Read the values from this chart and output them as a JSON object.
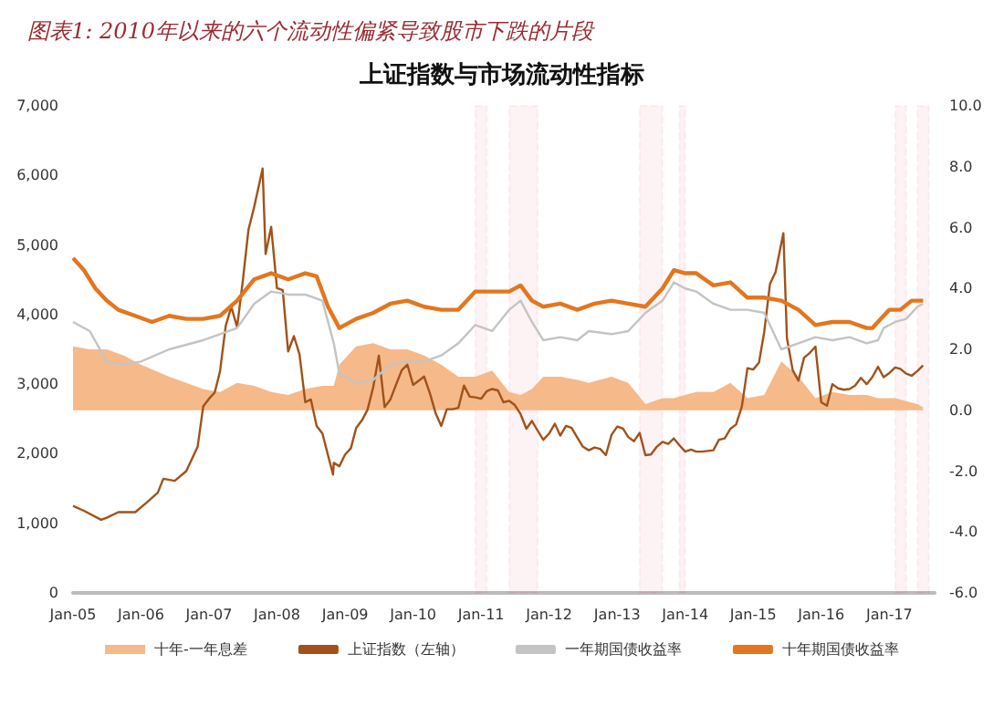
{
  "chart_data": {
    "type": "line",
    "title": "图表1: 2010年以来的六个流动性偏紧导致股市下跌的片段",
    "subtitle": "上证指数与市场流动性指标",
    "xlim": [
      "2005-01",
      "2017-09"
    ],
    "xticks": [
      {
        "value": "2005-01",
        "label": "Jan-05"
      },
      {
        "value": "2006-01",
        "label": "Jan-06"
      },
      {
        "value": "2007-01",
        "label": "Jan-07"
      },
      {
        "value": "2008-01",
        "label": "Jan-08"
      },
      {
        "value": "2009-01",
        "label": "Jan-09"
      },
      {
        "value": "2010-01",
        "label": "Jan-10"
      },
      {
        "value": "2011-01",
        "label": "Jan-11"
      },
      {
        "value": "2012-01",
        "label": "Jan-12"
      },
      {
        "value": "2013-01",
        "label": "Jan-13"
      },
      {
        "value": "2014-01",
        "label": "Jan-14"
      },
      {
        "value": "2015-01",
        "label": "Jan-15"
      },
      {
        "value": "2016-01",
        "label": "Jan-16"
      },
      {
        "value": "2017-01",
        "label": "Jan-17"
      }
    ],
    "ylim": [
      0,
      7000
    ],
    "yticks": [
      {
        "value": 0,
        "label": "0"
      },
      {
        "value": 1000,
        "label": "1,000"
      },
      {
        "value": 2000,
        "label": "2,000"
      },
      {
        "value": 3000,
        "label": "3,000"
      },
      {
        "value": 4000,
        "label": "4,000"
      },
      {
        "value": 5000,
        "label": "5,000"
      },
      {
        "value": 6000,
        "label": "6,000"
      },
      {
        "value": 7000,
        "label": "7,000"
      }
    ],
    "y2lim": [
      -6,
      10
    ],
    "y2ticks": [
      {
        "value": -6,
        "label": "-6.0"
      },
      {
        "value": -4,
        "label": "-4.0"
      },
      {
        "value": -2,
        "label": "-2.0"
      },
      {
        "value": 0,
        "label": "0.0"
      },
      {
        "value": 2,
        "label": "2.0"
      },
      {
        "value": 4,
        "label": "4.0"
      },
      {
        "value": 6,
        "label": "6.0"
      },
      {
        "value": 8,
        "label": "8.0"
      },
      {
        "value": 10,
        "label": "10.0"
      }
    ],
    "grid": false,
    "legend": "bottom",
    "marker": "none",
    "line_style": "solid",
    "bands": [
      {
        "axis": "x",
        "from": "2010-12",
        "to": "2011-02",
        "color": "#e8436a"
      },
      {
        "axis": "x",
        "from": "2011-06",
        "to": "2011-11",
        "color": "#e8436a"
      },
      {
        "axis": "x",
        "from": "2013-05",
        "to": "2013-09",
        "color": "#e8436a"
      },
      {
        "axis": "x",
        "from": "2013-12",
        "to": "2014-01",
        "color": "#e8436a"
      },
      {
        "axis": "x",
        "from": "2017-02",
        "to": "2017-04",
        "color": "#e8436a"
      },
      {
        "axis": "x",
        "from": "2017-06",
        "to": "2017-08",
        "color": "#e8436a"
      }
    ],
    "series": [
      {
        "name": "十年-一年息差",
        "type": "area",
        "axis": "y2",
        "color": "#f6b98a",
        "x": [
          "2005-01",
          "2005-04",
          "2005-07",
          "2005-10",
          "2006-01",
          "2006-06",
          "2006-12",
          "2007-03",
          "2007-06",
          "2007-09",
          "2007-12",
          "2008-03",
          "2008-06",
          "2008-09",
          "2008-11",
          "2008-12",
          "2009-03",
          "2009-06",
          "2009-09",
          "2009-12",
          "2010-03",
          "2010-06",
          "2010-09",
          "2010-12",
          "2011-03",
          "2011-06",
          "2011-08",
          "2011-10",
          "2011-12",
          "2012-03",
          "2012-06",
          "2012-08",
          "2012-12",
          "2013-03",
          "2013-06",
          "2013-09",
          "2013-11",
          "2014-01",
          "2014-03",
          "2014-06",
          "2014-09",
          "2014-12",
          "2015-03",
          "2015-06",
          "2015-09",
          "2015-12",
          "2016-03",
          "2016-06",
          "2016-09",
          "2016-11",
          "2016-12",
          "2017-02",
          "2017-04",
          "2017-06",
          "2017-07"
        ],
        "values": [
          2.1,
          2.0,
          2.0,
          1.8,
          1.5,
          1.1,
          0.7,
          0.6,
          0.9,
          0.8,
          0.6,
          0.5,
          0.7,
          0.8,
          0.8,
          1.5,
          2.1,
          2.2,
          2.0,
          2.0,
          1.8,
          1.5,
          1.1,
          1.1,
          1.3,
          0.6,
          0.5,
          0.7,
          1.1,
          1.1,
          1.0,
          0.9,
          1.1,
          0.9,
          0.2,
          0.4,
          0.4,
          0.5,
          0.6,
          0.6,
          0.9,
          0.4,
          0.5,
          1.6,
          1.1,
          0.4,
          0.6,
          0.5,
          0.5,
          0.4,
          0.4,
          0.4,
          0.3,
          0.2,
          0.1
        ]
      },
      {
        "name": "上证指数（左轴）",
        "color": "#a0521a",
        "x": [
          "2005-01",
          "2005-03",
          "2005-06",
          "2005-07",
          "2005-09",
          "2005-12",
          "2006-02",
          "2006-04",
          "2006-05",
          "2006-07",
          "2006-09",
          "2006-11",
          "2006-12",
          "2007-01",
          "2007-02",
          "2007-03",
          "2007-04",
          "2007-05",
          "2007-06",
          "2007-07",
          "2007-08",
          "2007-09",
          "2007-10-16",
          "2007-11",
          "2007-12",
          "2008-01",
          "2008-02",
          "2008-03",
          "2008-04",
          "2008-05",
          "2008-06",
          "2008-07",
          "2008-08",
          "2008-09",
          "2008-10-28",
          "2008-11",
          "2008-12",
          "2009-01",
          "2009-02",
          "2009-03",
          "2009-04",
          "2009-05",
          "2009-06",
          "2009-07",
          "2009-08",
          "2009-09",
          "2009-10",
          "2009-11",
          "2009-12",
          "2010-01",
          "2010-02",
          "2010-03",
          "2010-04",
          "2010-05",
          "2010-06",
          "2010-07",
          "2010-08",
          "2010-09",
          "2010-10",
          "2010-11",
          "2010-12",
          "2011-01",
          "2011-02",
          "2011-03",
          "2011-04",
          "2011-05",
          "2011-06",
          "2011-07",
          "2011-08",
          "2011-09",
          "2011-10",
          "2011-11",
          "2011-12",
          "2012-01",
          "2012-02",
          "2012-03",
          "2012-04",
          "2012-05",
          "2012-06",
          "2012-07",
          "2012-08",
          "2012-09",
          "2012-10",
          "2012-11",
          "2012-12",
          "2013-01",
          "2013-02",
          "2013-03",
          "2013-04",
          "2013-05",
          "2013-06",
          "2013-07",
          "2013-08",
          "2013-09",
          "2013-10",
          "2013-11",
          "2013-12",
          "2014-01",
          "2014-02",
          "2014-03",
          "2014-04",
          "2014-05",
          "2014-06",
          "2014-07",
          "2014-08",
          "2014-09",
          "2014-10",
          "2014-11",
          "2014-12",
          "2015-01",
          "2015-02",
          "2015-03",
          "2015-04",
          "2015-05",
          "2015-06-12",
          "2015-07",
          "2015-08",
          "2015-09",
          "2015-10",
          "2015-11",
          "2015-12",
          "2016-01",
          "2016-02",
          "2016-03",
          "2016-04",
          "2016-05",
          "2016-06",
          "2016-07",
          "2016-08",
          "2016-09",
          "2016-10",
          "2016-11",
          "2016-12",
          "2017-01",
          "2017-02",
          "2017-03",
          "2017-04",
          "2017-05",
          "2017-06",
          "2017-07"
        ],
        "values": [
          1250,
          1180,
          1050,
          1080,
          1160,
          1160,
          1300,
          1440,
          1640,
          1610,
          1750,
          2100,
          2680,
          2790,
          2880,
          3180,
          3840,
          4110,
          3820,
          4470,
          5220,
          5550,
          6100,
          4870,
          5260,
          4380,
          4350,
          3470,
          3690,
          3430,
          2740,
          2780,
          2400,
          2290,
          1700,
          1870,
          1820,
          1990,
          2080,
          2370,
          2480,
          2630,
          2960,
          3410,
          2670,
          2780,
          2990,
          3200,
          3280,
          2990,
          3050,
          3110,
          2870,
          2590,
          2400,
          2640,
          2640,
          2660,
          2980,
          2820,
          2810,
          2790,
          2900,
          2930,
          2910,
          2740,
          2760,
          2700,
          2570,
          2360,
          2470,
          2330,
          2200,
          2290,
          2430,
          2260,
          2400,
          2370,
          2230,
          2100,
          2050,
          2090,
          2070,
          1980,
          2270,
          2390,
          2360,
          2240,
          2180,
          2300,
          1980,
          1990,
          2100,
          2170,
          2140,
          2220,
          2120,
          2030,
          2060,
          2030,
          2030,
          2040,
          2050,
          2200,
          2220,
          2360,
          2420,
          2680,
          3230,
          3210,
          3310,
          3750,
          4440,
          4610,
          5170,
          3660,
          3200,
          3050,
          3380,
          3450,
          3540,
          2740,
          2690,
          3000,
          2940,
          2920,
          2930,
          2980,
          3090,
          3000,
          3100,
          3250,
          3100,
          3160,
          3240,
          3220,
          3150,
          3120,
          3190,
          3270
        ]
      },
      {
        "name": "一年期国债收益率",
        "type": "line",
        "axis": "y2",
        "color": "#c4c4c4",
        "x": [
          "2005-01",
          "2005-04",
          "2005-07",
          "2005-10",
          "2006-01",
          "2006-06",
          "2006-12",
          "2007-03",
          "2007-06",
          "2007-09",
          "2007-12",
          "2008-03",
          "2008-06",
          "2008-09",
          "2008-11",
          "2008-12",
          "2009-03",
          "2009-06",
          "2009-09",
          "2009-12",
          "2010-03",
          "2010-06",
          "2010-09",
          "2010-12",
          "2011-03",
          "2011-06",
          "2011-08",
          "2011-10",
          "2011-12",
          "2012-03",
          "2012-06",
          "2012-08",
          "2012-12",
          "2013-03",
          "2013-06",
          "2013-09",
          "2013-11",
          "2014-01",
          "2014-03",
          "2014-06",
          "2014-09",
          "2014-12",
          "2015-03",
          "2015-06",
          "2015-09",
          "2015-12",
          "2016-03",
          "2016-06",
          "2016-09",
          "2016-11",
          "2016-12",
          "2017-02",
          "2017-04",
          "2017-06",
          "2017-07"
        ],
        "values": [
          2.9,
          2.6,
          1.6,
          1.5,
          1.6,
          2.0,
          2.3,
          2.5,
          2.7,
          3.5,
          3.9,
          3.8,
          3.8,
          3.6,
          2.2,
          1.2,
          0.9,
          1.0,
          1.5,
          1.6,
          1.6,
          1.8,
          2.2,
          2.8,
          2.6,
          3.3,
          3.6,
          2.9,
          2.3,
          2.4,
          2.3,
          2.6,
          2.5,
          2.6,
          3.2,
          3.6,
          4.2,
          4.0,
          3.9,
          3.5,
          3.3,
          3.3,
          3.2,
          2.0,
          2.2,
          2.4,
          2.3,
          2.4,
          2.2,
          2.3,
          2.7,
          2.9,
          3.0,
          3.4,
          3.5
        ]
      },
      {
        "name": "十年期国债收益率",
        "type": "line",
        "axis": "y2",
        "color": "#e3761e",
        "x": [
          "2005-01",
          "2005-03",
          "2005-05",
          "2005-07",
          "2005-09",
          "2005-12",
          "2006-03",
          "2006-06",
          "2006-09",
          "2006-12",
          "2007-03",
          "2007-06",
          "2007-09",
          "2007-12",
          "2008-03",
          "2008-06",
          "2008-08",
          "2008-10",
          "2008-12",
          "2009-03",
          "2009-06",
          "2009-09",
          "2009-12",
          "2010-03",
          "2010-06",
          "2010-09",
          "2010-12",
          "2011-03",
          "2011-06",
          "2011-08",
          "2011-10",
          "2011-12",
          "2012-03",
          "2012-06",
          "2012-09",
          "2012-12",
          "2013-03",
          "2013-06",
          "2013-09",
          "2013-11",
          "2014-01",
          "2014-03",
          "2014-06",
          "2014-09",
          "2014-12",
          "2015-03",
          "2015-06",
          "2015-09",
          "2015-12",
          "2016-03",
          "2016-06",
          "2016-09",
          "2016-10",
          "2016-12",
          "2017-01",
          "2017-03",
          "2017-05",
          "2017-07"
        ],
        "values": [
          5.0,
          4.6,
          4.0,
          3.6,
          3.3,
          3.1,
          2.9,
          3.1,
          3.0,
          3.0,
          3.1,
          3.6,
          4.3,
          4.5,
          4.3,
          4.5,
          4.4,
          3.4,
          2.7,
          3.0,
          3.2,
          3.5,
          3.6,
          3.4,
          3.3,
          3.3,
          3.9,
          3.9,
          3.9,
          4.1,
          3.6,
          3.4,
          3.5,
          3.3,
          3.5,
          3.6,
          3.5,
          3.4,
          4.0,
          4.6,
          4.5,
          4.5,
          4.1,
          4.2,
          3.7,
          3.7,
          3.6,
          3.3,
          2.8,
          2.9,
          2.9,
          2.7,
          2.7,
          3.1,
          3.3,
          3.3,
          3.6,
          3.6
        ]
      }
    ]
  }
}
